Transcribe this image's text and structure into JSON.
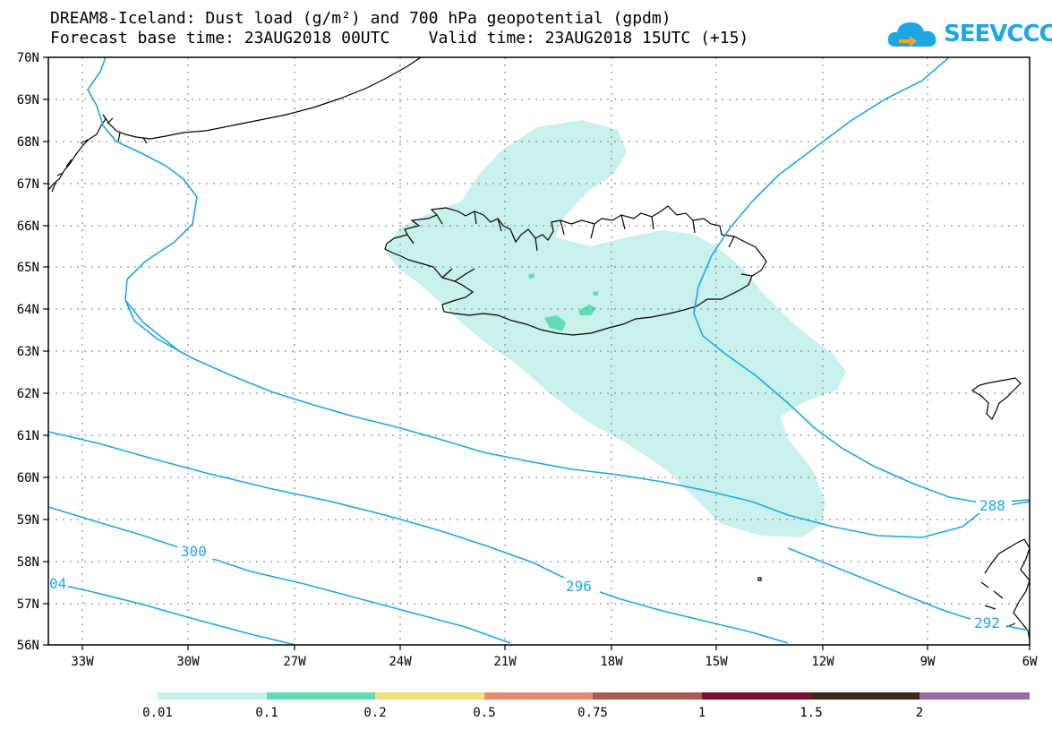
{
  "header": {
    "title_line1": "DREAM8-Iceland: Dust load (g/m²) and 700 hPa geopotential (gpdm)",
    "title_line2": "Forecast base time: 23AUG2018 00UTC    Valid time: 23AUG2018 15UTC (+15)",
    "logo_text": "SEEVCCC"
  },
  "map": {
    "lon_labels": [
      "33W",
      "30W",
      "27W",
      "24W",
      "21W",
      "18W",
      "15W",
      "12W",
      "9W",
      "6W"
    ],
    "lat_labels": [
      "70N",
      "69N",
      "68N",
      "67N",
      "66N",
      "65N",
      "64N",
      "63N",
      "62N",
      "61N",
      "60N",
      "59N",
      "58N",
      "57N",
      "56N"
    ],
    "contour_labels": [
      "300",
      "296",
      "288",
      "292",
      "04"
    ],
    "contour_color": "#1fa6e6",
    "coast_color": "#000000"
  },
  "colorbar": {
    "colors": [
      "#c7f1ea",
      "#5edcb6",
      "#f3e17c",
      "#e48d6d",
      "#a85b4f",
      "#7b0f34",
      "#3e2a17",
      "#9a6ba6"
    ],
    "labels": [
      "0.01",
      "0.1",
      "0.2",
      "0.5",
      "0.75",
      "1",
      "1.5",
      "2"
    ]
  }
}
